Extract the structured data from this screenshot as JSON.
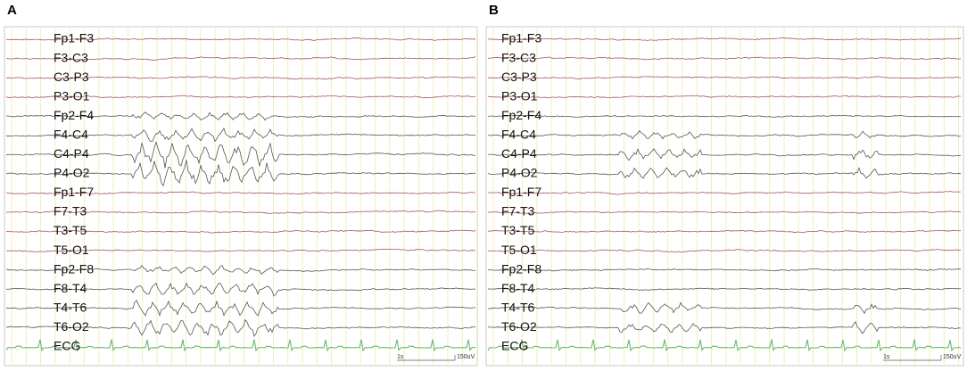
{
  "panels": [
    {
      "label": "A",
      "channels": [
        "Fp1-F3",
        "F3-C3",
        "C3-P3",
        "P3-O1",
        "Fp2-F4",
        "F4-C4",
        "C4-P4",
        "P4-O2",
        "Fp1-F7",
        "F7-T3",
        "T3-T5",
        "T5-O1",
        "Fp2-F8",
        "F8-T4",
        "T4-T6",
        "T6-O2",
        "ECG"
      ],
      "scale_time": "1s",
      "scale_amplitude": "150uV"
    },
    {
      "label": "B",
      "channels": [
        "Fp1-F3",
        "F3-C3",
        "C3-P3",
        "P3-O1",
        "Fp2-F4",
        "F4-C4",
        "C4-P4",
        "P4-O2",
        "Fp1-F7",
        "F7-T3",
        "T3-T5",
        "T5-O1",
        "Fp2-F8",
        "F8-T4",
        "T4-T6",
        "T6-O2",
        "ECG"
      ],
      "scale_time": "1s",
      "scale_amplitude": "150uV"
    }
  ]
}
